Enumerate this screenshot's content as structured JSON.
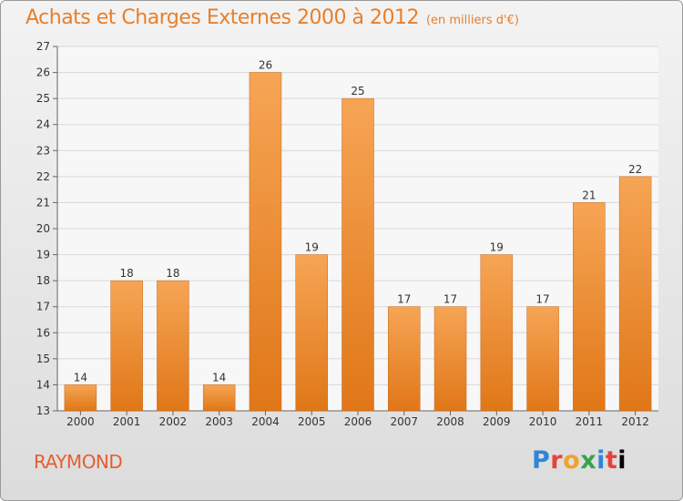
{
  "header": {
    "title": "Achats et Charges Externes 2000 à 2012",
    "subtitle": "(en milliers d'€)"
  },
  "footer": {
    "commune": "RAYMOND",
    "logo": [
      "P",
      "r",
      "o",
      "x",
      "i",
      "t",
      "i"
    ]
  },
  "colors": {
    "bar_top": "#f6a555",
    "bar_bottom": "#e07718",
    "title": "#e87f2a",
    "commune": "#e65e2f"
  },
  "chart_data": {
    "type": "bar",
    "title": "Achats et Charges Externes 2000 à 2012",
    "subtitle": "(en milliers d'€)",
    "xlabel": "",
    "ylabel": "",
    "ylim": [
      13,
      27
    ],
    "yticks": [
      13,
      14,
      15,
      16,
      17,
      18,
      19,
      20,
      21,
      22,
      23,
      24,
      25,
      26,
      27
    ],
    "grid": true,
    "categories": [
      "2000",
      "2001",
      "2002",
      "2003",
      "2004",
      "2005",
      "2006",
      "2007",
      "2008",
      "2009",
      "2010",
      "2011",
      "2012"
    ],
    "values": [
      14,
      18,
      18,
      14,
      26,
      19,
      25,
      17,
      17,
      19,
      17,
      21,
      22
    ]
  }
}
